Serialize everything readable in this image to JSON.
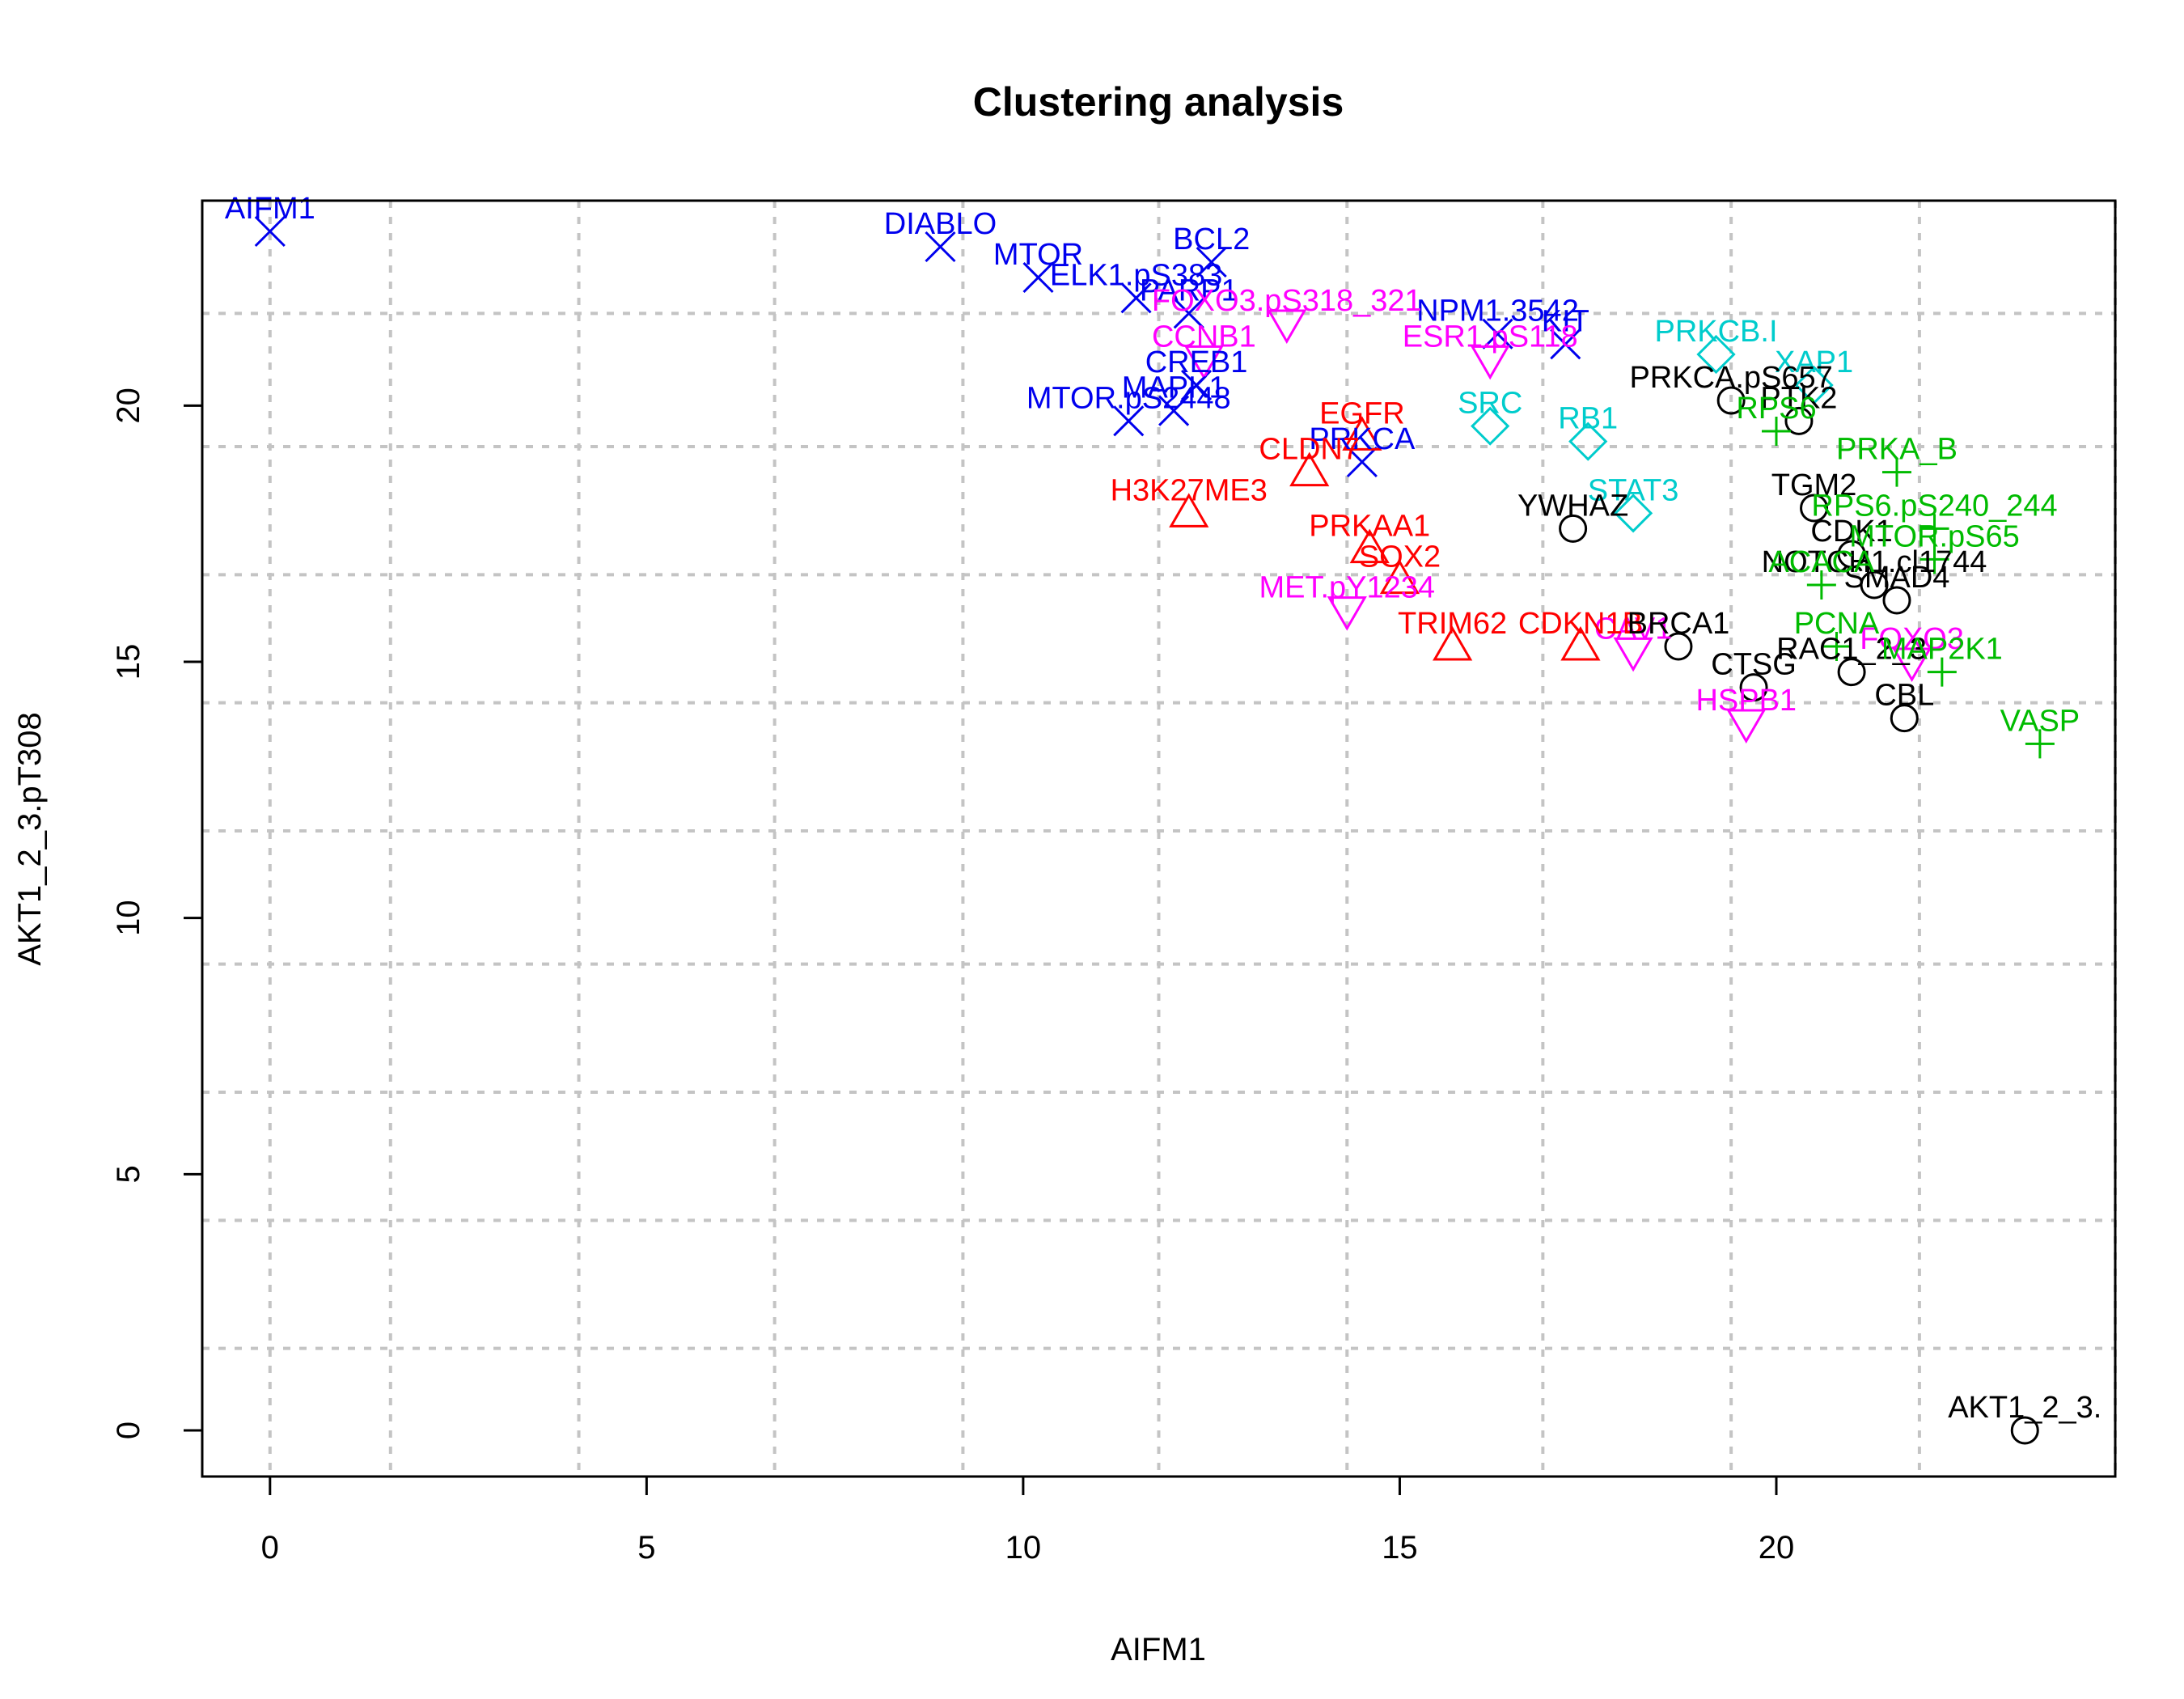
{
  "chart_data": {
    "type": "scatter",
    "title": "Clustering analysis",
    "xlabel": "AIFM1",
    "ylabel": "AKT1_2_3.pT308",
    "xlim": [
      -0.9,
      24.5
    ],
    "ylim": [
      -0.9,
      24.0
    ],
    "x_ticks": [
      0,
      5,
      10,
      15,
      20
    ],
    "y_ticks": [
      0,
      5,
      10,
      15,
      20
    ],
    "x_grid": [
      0,
      1.6,
      4.1,
      6.7,
      9.2,
      11.8,
      14.3,
      16.9,
      19.4,
      21.9,
      24.5
    ],
    "y_grid": [
      1.6,
      4.1,
      6.6,
      9.1,
      11.7,
      14.2,
      16.7,
      19.2,
      21.8
    ],
    "grid": true,
    "legend": "none",
    "series": [
      {
        "color": "#0000ee",
        "marker": "x",
        "points": [
          {
            "label": "AIFM1",
            "x": 0.0,
            "y": 23.4
          },
          {
            "label": "DIABLO",
            "x": 8.9,
            "y": 23.1
          },
          {
            "label": "MTOR",
            "x": 10.2,
            "y": 22.5
          },
          {
            "label": "BCL2",
            "x": 12.5,
            "y": 22.8
          },
          {
            "label": "ELK1.pS383",
            "x": 11.5,
            "y": 22.1
          },
          {
            "label": "PARP1",
            "x": 12.2,
            "y": 21.8
          },
          {
            "label": "NPM1.3542",
            "x": 16.3,
            "y": 21.4
          },
          {
            "label": "PRKCA",
            "x": 14.5,
            "y": 18.9
          },
          {
            "label": "CREB1",
            "x": 12.3,
            "y": 20.4
          },
          {
            "label": "MAPK1",
            "x": 12.0,
            "y": 19.9
          },
          {
            "label": "MTOR.pS2448",
            "x": 11.4,
            "y": 19.7
          },
          {
            "label": "KIT",
            "x": 17.2,
            "y": 21.2
          }
        ]
      },
      {
        "color": "#00cccc",
        "marker": "diamond",
        "points": [
          {
            "label": "PRKCB.I",
            "x": 19.2,
            "y": 21.0
          },
          {
            "label": "XAP1",
            "x": 20.5,
            "y": 20.4
          },
          {
            "label": "RB1",
            "x": 17.5,
            "y": 19.3
          },
          {
            "label": "SRC",
            "x": 16.2,
            "y": 19.6
          },
          {
            "label": "STAT3",
            "x": 18.1,
            "y": 17.9
          }
        ]
      },
      {
        "color": "#ff00ff",
        "marker": "triangle-down",
        "points": [
          {
            "label": "FOXO3.pS318_321",
            "x": 13.5,
            "y": 21.6
          },
          {
            "label": "CCNB1",
            "x": 12.4,
            "y": 20.9
          },
          {
            "label": "ESR1.pS118",
            "x": 16.2,
            "y": 20.9
          },
          {
            "label": "MET.pY1234",
            "x": 14.3,
            "y": 16.0
          },
          {
            "label": "HSPB1",
            "x": 19.6,
            "y": 13.8
          },
          {
            "label": "FOXO3",
            "x": 21.8,
            "y": 15.0
          },
          {
            "label": "CAV1",
            "x": 18.1,
            "y": 15.2
          }
        ]
      },
      {
        "color": "#ff0000",
        "marker": "triangle",
        "points": [
          {
            "label": "H3K27ME3",
            "x": 12.2,
            "y": 17.9
          },
          {
            "label": "CLDN7",
            "x": 13.8,
            "y": 18.7
          },
          {
            "label": "PRKAA1",
            "x": 14.6,
            "y": 17.2
          },
          {
            "label": "SOX2",
            "x": 15.0,
            "y": 16.6
          },
          {
            "label": "TRIM62",
            "x": 15.7,
            "y": 15.3
          },
          {
            "label": "EGFR",
            "x": 14.5,
            "y": 19.4
          },
          {
            "label": "CDKN1B",
            "x": 17.4,
            "y": 15.3
          }
        ]
      },
      {
        "color": "#000000",
        "marker": "circle",
        "points": [
          {
            "label": "AKT1_2_3.",
            "x": 23.3,
            "y": 0.0
          },
          {
            "label": "CBL",
            "x": 21.7,
            "y": 13.9
          },
          {
            "label": "RAC1_2_3",
            "x": 21.0,
            "y": 14.8
          },
          {
            "label": "CTSG",
            "x": 19.7,
            "y": 14.5
          },
          {
            "label": "YWHAZ",
            "x": 17.3,
            "y": 17.6
          },
          {
            "label": "TGM2",
            "x": 20.5,
            "y": 18.0
          },
          {
            "label": "PRKCA.pS657",
            "x": 19.4,
            "y": 20.1
          },
          {
            "label": "PTK2",
            "x": 20.3,
            "y": 19.7
          },
          {
            "label": "NOTCH1.cl1744",
            "x": 21.3,
            "y": 16.5
          },
          {
            "label": "BRCA1",
            "x": 18.7,
            "y": 15.3
          },
          {
            "label": "CDK1",
            "x": 21.0,
            "y": 17.1
          },
          {
            "label": "SMAD4",
            "x": 21.6,
            "y": 16.2
          }
        ]
      },
      {
        "color": "#00bb00",
        "marker": "plus",
        "points": [
          {
            "label": "VASP",
            "x": 23.5,
            "y": 13.4
          },
          {
            "label": "PRKA_B",
            "x": 21.6,
            "y": 18.7
          },
          {
            "label": "RPS6.pS240_244",
            "x": 22.1,
            "y": 17.6
          },
          {
            "label": "MAP2K1",
            "x": 22.2,
            "y": 14.8
          },
          {
            "label": "MTOR.pS65",
            "x": 22.1,
            "y": 17.0
          },
          {
            "label": "PCNA",
            "x": 20.8,
            "y": 15.3
          },
          {
            "label": "RPS6",
            "x": 20.0,
            "y": 19.5
          },
          {
            "label": "ACACA",
            "x": 20.6,
            "y": 16.5
          }
        ]
      }
    ]
  }
}
